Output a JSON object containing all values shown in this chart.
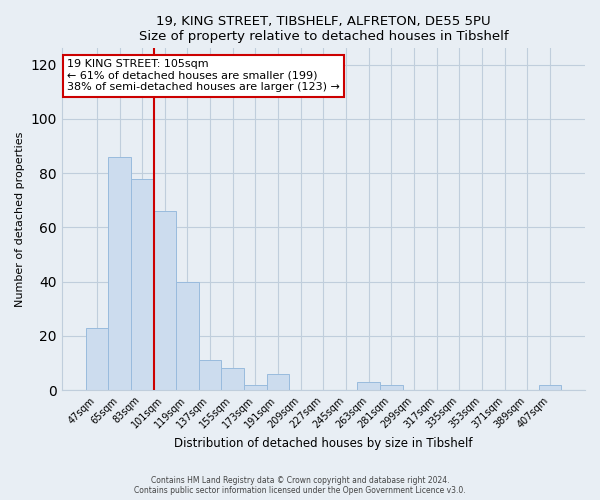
{
  "title_line1": "19, KING STREET, TIBSHELF, ALFRETON, DE55 5PU",
  "title_line2": "Size of property relative to detached houses in Tibshelf",
  "xlabel": "Distribution of detached houses by size in Tibshelf",
  "ylabel": "Number of detached properties",
  "bar_labels": [
    "47sqm",
    "65sqm",
    "83sqm",
    "101sqm",
    "119sqm",
    "137sqm",
    "155sqm",
    "173sqm",
    "191sqm",
    "209sqm",
    "227sqm",
    "245sqm",
    "263sqm",
    "281sqm",
    "299sqm",
    "317sqm",
    "335sqm",
    "353sqm",
    "371sqm",
    "389sqm",
    "407sqm"
  ],
  "bar_values": [
    23,
    86,
    78,
    66,
    40,
    11,
    8,
    2,
    6,
    0,
    0,
    0,
    3,
    2,
    0,
    0,
    0,
    0,
    0,
    0,
    2
  ],
  "bar_color": "#ccdcee",
  "bar_edge_color": "#99bbdd",
  "vline_color": "#cc0000",
  "annotation_text": "19 KING STREET: 105sqm\n← 61% of detached houses are smaller (199)\n38% of semi-detached houses are larger (123) →",
  "annotation_box_color": "#ffffff",
  "annotation_box_edge": "#cc0000",
  "ylim": [
    0,
    126
  ],
  "yticks": [
    0,
    20,
    40,
    60,
    80,
    100,
    120
  ],
  "footer_line1": "Contains HM Land Registry data © Crown copyright and database right 2024.",
  "footer_line2": "Contains public sector information licensed under the Open Government Licence v3.0.",
  "background_color": "#e8eef4",
  "plot_background": "#e8eef4",
  "grid_color": "#c0cedc"
}
